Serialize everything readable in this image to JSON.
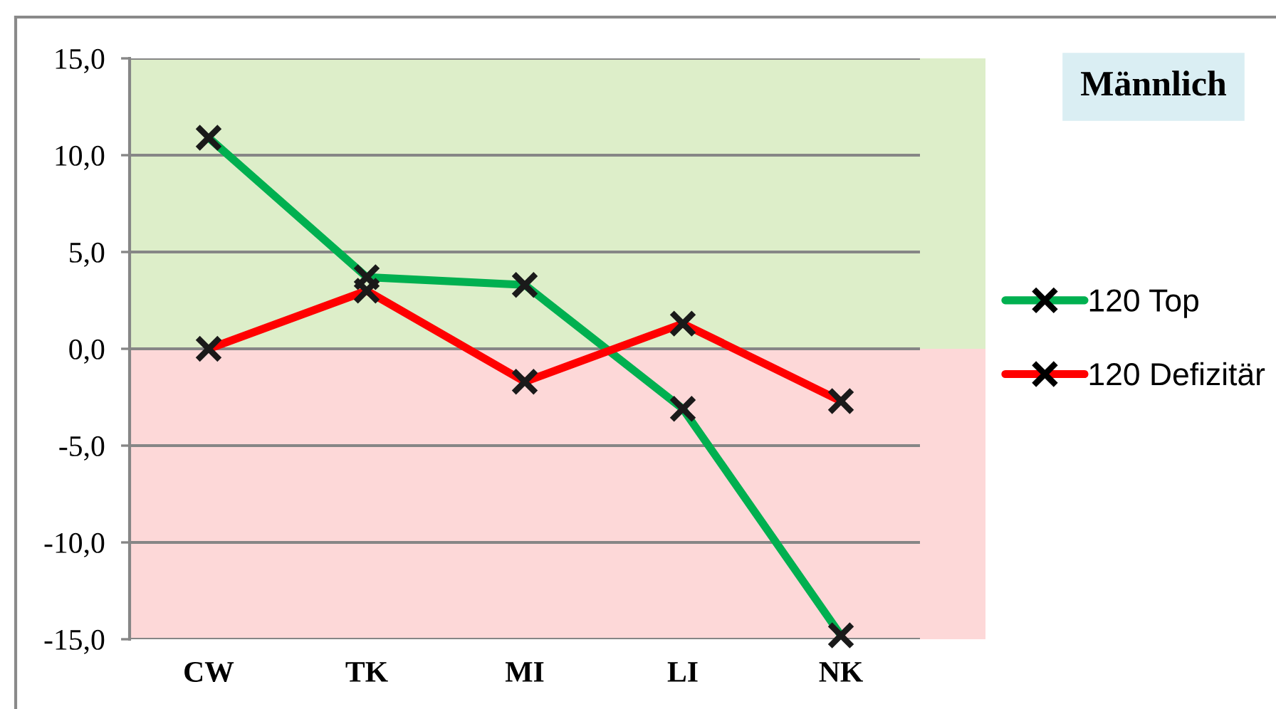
{
  "chart_data": {
    "type": "line",
    "categories": [
      "CW",
      "TK",
      "MI",
      "LI",
      "NK"
    ],
    "series": [
      {
        "name": "120 Top",
        "color": "#00b050",
        "values": [
          10.9,
          3.7,
          3.3,
          -3.1,
          -14.8
        ]
      },
      {
        "name": "120 Defizitär",
        "color": "#ff0000",
        "values": [
          0.0,
          3.0,
          -1.7,
          1.3,
          -2.7
        ]
      }
    ],
    "ylim": [
      -15,
      15
    ],
    "yticks": [
      {
        "value": -15,
        "label": "-15,0"
      },
      {
        "value": -10,
        "label": "-10,0"
      },
      {
        "value": -5,
        "label": "-5,0"
      },
      {
        "value": 0,
        "label": "0,0"
      },
      {
        "value": 5,
        "label": "5,0"
      },
      {
        "value": 10,
        "label": "10,0"
      },
      {
        "value": 15,
        "label": "15,0"
      }
    ],
    "grid": "y",
    "legend": "right",
    "marker": "cross",
    "line_style": "solid",
    "bands": [
      {
        "axis": "y",
        "from": 0,
        "to": 15,
        "color": "#ddeec9"
      },
      {
        "axis": "y",
        "from": -15,
        "to": 0,
        "color": "#fdd8d8"
      }
    ],
    "annotations": [
      "Männlich"
    ]
  }
}
